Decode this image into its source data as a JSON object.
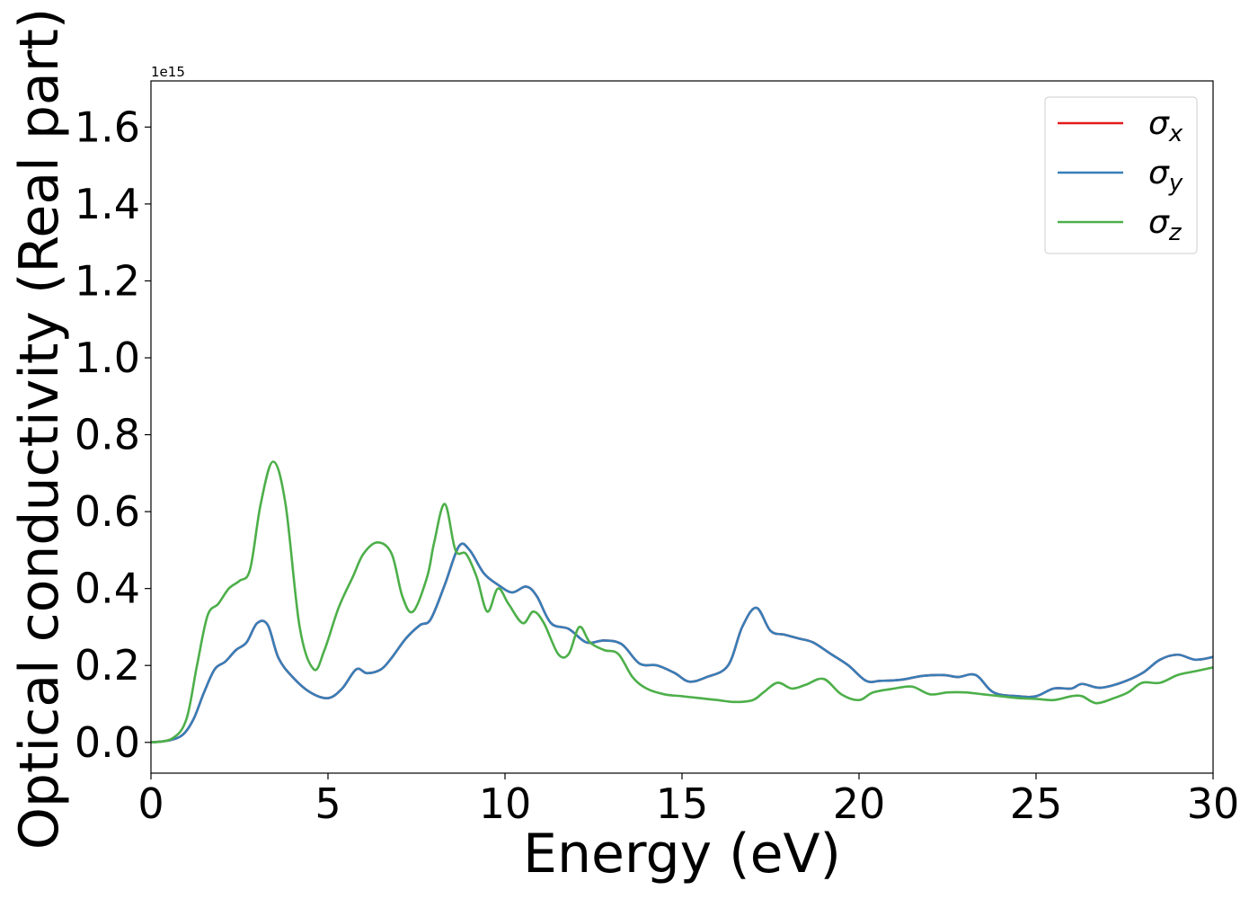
{
  "chart_data": {
    "type": "line",
    "xlabel": "Energy (eV)",
    "ylabel": "Optical conductivity (Real part)",
    "offset_text": "1e15",
    "xlim": [
      0,
      30
    ],
    "ylim": [
      -0.08,
      1.72
    ],
    "x_ticks": [
      0,
      5,
      10,
      15,
      20,
      25,
      30
    ],
    "x_tick_labels": [
      "0",
      "5",
      "10",
      "15",
      "20",
      "25",
      "30"
    ],
    "y_ticks": [
      0.0,
      0.2,
      0.4,
      0.6,
      0.8,
      1.0,
      1.2,
      1.4,
      1.6
    ],
    "y_tick_labels": [
      "0.0",
      "0.2",
      "0.4",
      "0.6",
      "0.8",
      "1.0",
      "1.2",
      "1.4",
      "1.6"
    ],
    "grid": false,
    "legend_position": "top-right",
    "series": [
      {
        "name": "σx",
        "sub": "x",
        "color": "#e41a1c",
        "x": [
          0,
          0.5,
          0.9,
          1.2,
          1.5,
          1.8,
          2.1,
          2.4,
          2.7,
          3.0,
          3.3,
          3.6,
          4.0,
          4.5,
          5.0,
          5.4,
          5.8,
          6.1,
          6.5,
          6.8,
          7.2,
          7.6,
          7.9,
          8.3,
          8.7,
          9.0,
          9.4,
          9.8,
          10.2,
          10.6,
          10.9,
          11.3,
          11.8,
          12.3,
          12.8,
          13.3,
          13.8,
          14.3,
          14.8,
          15.2,
          15.7,
          16.3,
          16.7,
          17.1,
          17.5,
          17.9,
          18.3,
          18.7,
          19.2,
          19.7,
          20.2,
          20.6,
          21.2,
          21.8,
          22.4,
          22.8,
          23.3,
          23.8,
          24.5,
          25.0,
          25.5,
          26.0,
          26.3,
          26.8,
          27.4,
          28.0,
          28.5,
          29.0,
          29.5,
          30.0
        ],
        "values": [
          0,
          0.005,
          0.02,
          0.06,
          0.13,
          0.19,
          0.21,
          0.24,
          0.26,
          0.31,
          0.305,
          0.22,
          0.17,
          0.13,
          0.115,
          0.14,
          0.19,
          0.18,
          0.19,
          0.22,
          0.27,
          0.305,
          0.32,
          0.41,
          0.51,
          0.5,
          0.44,
          0.41,
          0.39,
          0.405,
          0.38,
          0.31,
          0.295,
          0.26,
          0.265,
          0.255,
          0.205,
          0.2,
          0.18,
          0.158,
          0.17,
          0.2,
          0.3,
          0.35,
          0.29,
          0.28,
          0.27,
          0.26,
          0.23,
          0.2,
          0.16,
          0.16,
          0.163,
          0.173,
          0.175,
          0.17,
          0.175,
          0.13,
          0.12,
          0.12,
          0.14,
          0.14,
          0.152,
          0.142,
          0.155,
          0.18,
          0.215,
          0.228,
          0.215,
          0.222
        ]
      },
      {
        "name": "σy",
        "sub": "y",
        "color": "#377eb8",
        "x": [
          0,
          0.5,
          0.9,
          1.2,
          1.5,
          1.8,
          2.1,
          2.4,
          2.7,
          3.0,
          3.3,
          3.6,
          4.0,
          4.5,
          5.0,
          5.4,
          5.8,
          6.1,
          6.5,
          6.8,
          7.2,
          7.6,
          7.9,
          8.3,
          8.7,
          9.0,
          9.4,
          9.8,
          10.2,
          10.6,
          10.9,
          11.3,
          11.8,
          12.3,
          12.8,
          13.3,
          13.8,
          14.3,
          14.8,
          15.2,
          15.7,
          16.3,
          16.7,
          17.1,
          17.5,
          17.9,
          18.3,
          18.7,
          19.2,
          19.7,
          20.2,
          20.6,
          21.2,
          21.8,
          22.4,
          22.8,
          23.3,
          23.8,
          24.5,
          25.0,
          25.5,
          26.0,
          26.3,
          26.8,
          27.4,
          28.0,
          28.5,
          29.0,
          29.5,
          30.0
        ],
        "values": [
          0,
          0.005,
          0.02,
          0.06,
          0.13,
          0.19,
          0.21,
          0.24,
          0.26,
          0.31,
          0.305,
          0.22,
          0.17,
          0.13,
          0.115,
          0.14,
          0.19,
          0.18,
          0.19,
          0.22,
          0.27,
          0.305,
          0.32,
          0.41,
          0.51,
          0.5,
          0.44,
          0.41,
          0.39,
          0.405,
          0.38,
          0.31,
          0.295,
          0.26,
          0.265,
          0.255,
          0.205,
          0.2,
          0.18,
          0.158,
          0.17,
          0.2,
          0.3,
          0.35,
          0.29,
          0.28,
          0.27,
          0.26,
          0.23,
          0.2,
          0.16,
          0.16,
          0.163,
          0.173,
          0.175,
          0.17,
          0.175,
          0.13,
          0.12,
          0.12,
          0.14,
          0.14,
          0.152,
          0.142,
          0.155,
          0.18,
          0.215,
          0.228,
          0.215,
          0.222
        ]
      },
      {
        "name": "σz",
        "sub": "z",
        "color": "#4daf4a",
        "x": [
          0,
          0.6,
          1.0,
          1.3,
          1.6,
          1.9,
          2.2,
          2.5,
          2.8,
          3.1,
          3.45,
          3.8,
          4.2,
          4.6,
          4.9,
          5.3,
          5.7,
          6.0,
          6.4,
          6.8,
          7.1,
          7.4,
          7.8,
          8.0,
          8.3,
          8.6,
          8.9,
          9.2,
          9.5,
          9.8,
          10.1,
          10.5,
          10.8,
          11.1,
          11.5,
          11.8,
          12.1,
          12.4,
          12.8,
          13.2,
          13.6,
          14.0,
          14.5,
          15.0,
          15.5,
          16.0,
          16.5,
          17.0,
          17.3,
          17.7,
          18.1,
          18.5,
          19.0,
          19.5,
          20.0,
          20.4,
          21.0,
          21.5,
          22.0,
          22.5,
          23.0,
          23.5,
          24.0,
          24.5,
          25.0,
          25.5,
          26.0,
          26.3,
          26.7,
          27.2,
          27.6,
          28.0,
          28.5,
          29.0,
          29.5,
          30.0
        ],
        "values": [
          0,
          0.01,
          0.06,
          0.2,
          0.33,
          0.36,
          0.4,
          0.42,
          0.45,
          0.62,
          0.73,
          0.62,
          0.3,
          0.19,
          0.24,
          0.35,
          0.43,
          0.49,
          0.52,
          0.49,
          0.38,
          0.34,
          0.43,
          0.52,
          0.62,
          0.5,
          0.49,
          0.43,
          0.34,
          0.4,
          0.36,
          0.31,
          0.34,
          0.31,
          0.23,
          0.23,
          0.3,
          0.26,
          0.24,
          0.23,
          0.17,
          0.14,
          0.125,
          0.12,
          0.115,
          0.11,
          0.105,
          0.11,
          0.13,
          0.155,
          0.14,
          0.15,
          0.165,
          0.125,
          0.11,
          0.13,
          0.14,
          0.145,
          0.125,
          0.13,
          0.13,
          0.125,
          0.12,
          0.115,
          0.113,
          0.11,
          0.12,
          0.12,
          0.102,
          0.115,
          0.13,
          0.155,
          0.155,
          0.175,
          0.185,
          0.195
        ]
      }
    ]
  }
}
